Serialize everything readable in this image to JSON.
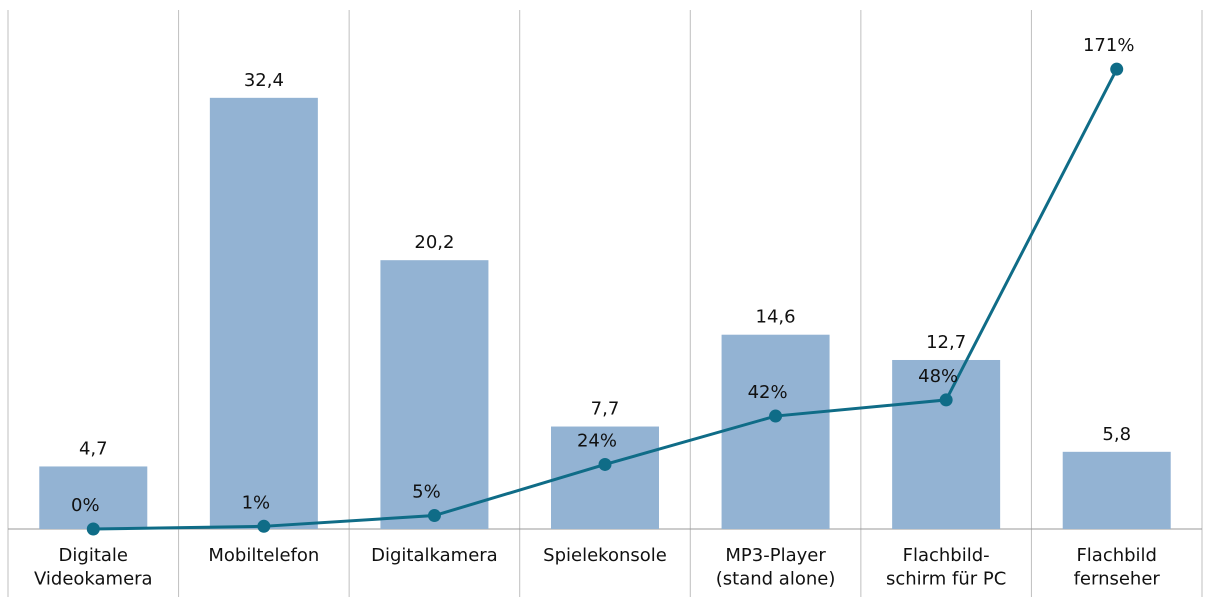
{
  "chart_data": {
    "type": "bar",
    "categories": [
      "Digitale\nVideokamera",
      "Mobiltelefon",
      "Digitalkamera",
      "Spielekonsole",
      "MP3-Player\n(stand alone)",
      "Flachbild-\nschirm für PC",
      "Flachbild\nfernseher"
    ],
    "series": [
      {
        "type": "bar",
        "color": "#93b3d3",
        "values": [
          4.7,
          32.4,
          20.2,
          7.7,
          14.6,
          12.7,
          5.8
        ],
        "value_labels": [
          "4,7",
          "32,4",
          "20,2",
          "7,7",
          "14,6",
          "12,7",
          "5,8"
        ]
      },
      {
        "type": "line",
        "axis": "y2",
        "color": "#0f6c87",
        "values": [
          0,
          1,
          5,
          24,
          42,
          48,
          171
        ],
        "value_labels": [
          "0%",
          "1%",
          "5%",
          "24%",
          "42%",
          "48%",
          "171%"
        ]
      }
    ],
    "ylim": [
      0,
      39
    ],
    "y2lim": [
      0,
      193
    ]
  }
}
